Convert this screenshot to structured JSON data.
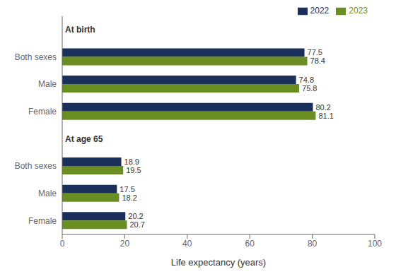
{
  "chart_data": {
    "type": "bar",
    "orientation": "horizontal",
    "categories": [
      "Both sexes",
      "Male",
      "Female",
      "Both sexes",
      "Male",
      "Female"
    ],
    "series": [
      {
        "name": "2022",
        "color": "#1a2f5a",
        "values": [
          77.5,
          74.8,
          80.2,
          18.9,
          17.5,
          20.2
        ]
      },
      {
        "name": "2023",
        "color": "#6b8e23",
        "values": [
          78.4,
          75.8,
          81.1,
          19.5,
          18.2,
          20.7
        ]
      }
    ],
    "xlabel": "Life expectancy (years)",
    "xlim": [
      0,
      100
    ],
    "xticks": [
      0,
      20,
      40,
      60,
      80,
      100
    ],
    "data_labels": true,
    "grid": false,
    "legend": "upper right",
    "annotations": [
      {
        "text": "At birth",
        "at": 0
      },
      {
        "text": "At age 65",
        "at": 3
      }
    ]
  }
}
